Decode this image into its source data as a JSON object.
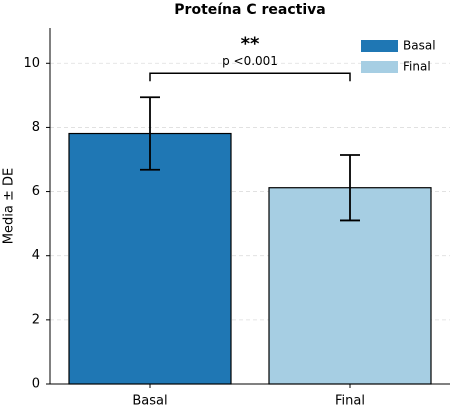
{
  "chart_data": {
    "type": "bar",
    "title": "Proteína C reactiva",
    "ylabel": "Media ± DE",
    "categories": [
      "Basal",
      "Final"
    ],
    "values": [
      7.81,
      6.12
    ],
    "errors": [
      1.13,
      1.02
    ],
    "colors": [
      "#1f77b4",
      "#a6cee3"
    ],
    "ylim": [
      0,
      11.1
    ],
    "yticks": [
      0,
      2,
      4,
      6,
      8,
      10
    ],
    "grid": true,
    "legend": "upper right",
    "annotations": [
      "**",
      "p <0.001"
    ]
  }
}
